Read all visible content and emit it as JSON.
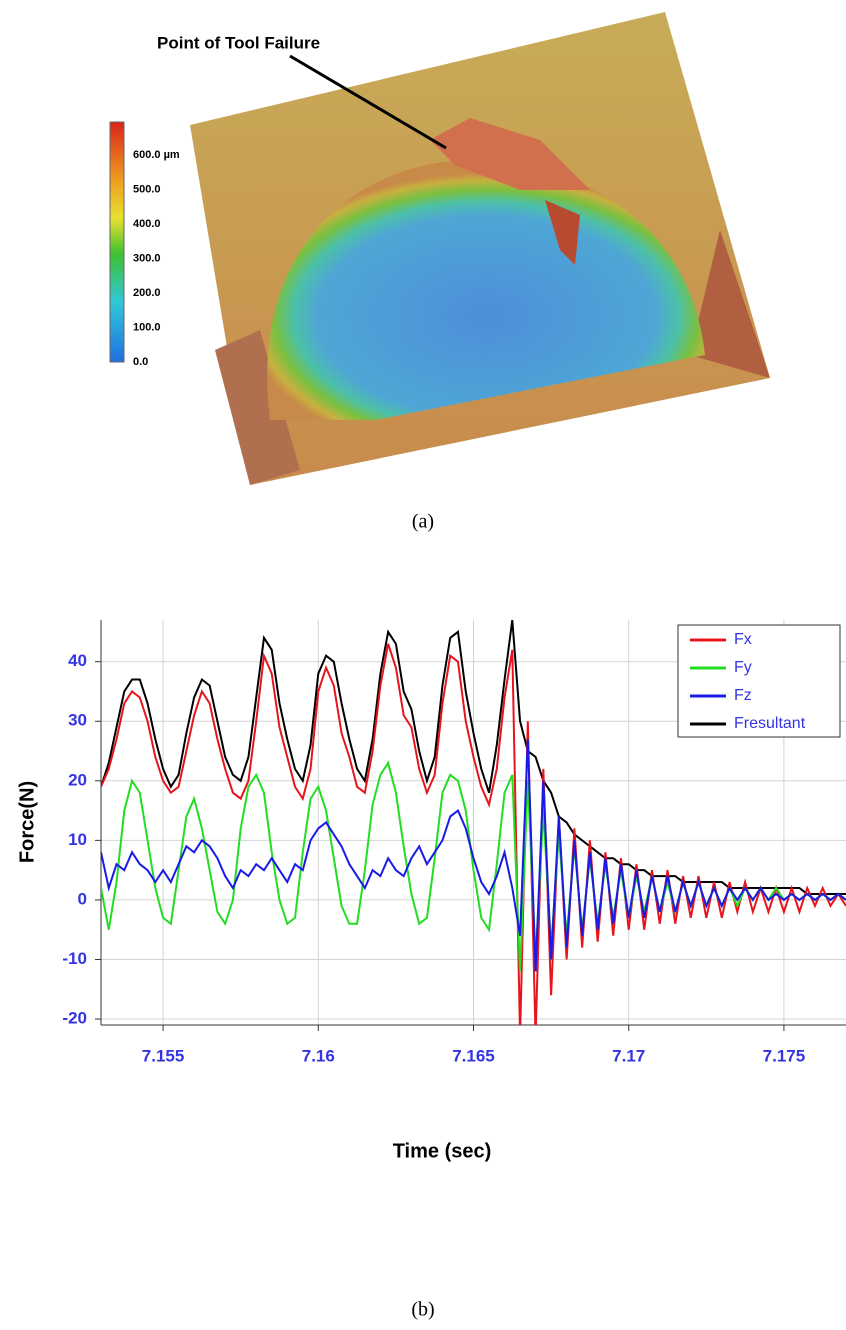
{
  "panel_a": {
    "annotation": "Point of Tool Failure",
    "colorbar_labels": [
      "600.0 µm",
      "500.0",
      "400.0",
      "300.0",
      "200.0",
      "100.0",
      "0.0"
    ],
    "caption": "(a)"
  },
  "chart_data": {
    "type": "line",
    "xlabel": "Time (sec)",
    "ylabel": "Force(N)",
    "caption": "(b)",
    "xlim": [
      7.153,
      7.177
    ],
    "xticks": [
      7.155,
      7.16,
      7.165,
      7.17,
      7.175
    ],
    "ylim": [
      -21,
      47
    ],
    "yticks": [
      -20,
      -10,
      0,
      10,
      20,
      30,
      40
    ],
    "grid": true,
    "legend": "upper right",
    "x": [
      7.153,
      7.15325,
      7.1535,
      7.15375,
      7.154,
      7.15425,
      7.1545,
      7.15475,
      7.155,
      7.15525,
      7.1555,
      7.15575,
      7.156,
      7.15625,
      7.1565,
      7.15675,
      7.157,
      7.15725,
      7.1575,
      7.15775,
      7.158,
      7.15825,
      7.1585,
      7.15875,
      7.159,
      7.15925,
      7.1595,
      7.15975,
      7.16,
      7.16025,
      7.1605,
      7.16075,
      7.161,
      7.16125,
      7.1615,
      7.16175,
      7.162,
      7.16225,
      7.1625,
      7.16275,
      7.163,
      7.16325,
      7.1635,
      7.16375,
      7.164,
      7.16425,
      7.1645,
      7.16475,
      7.165,
      7.16525,
      7.1655,
      7.16575,
      7.166,
      7.16625,
      7.1665,
      7.16675,
      7.167,
      7.16725,
      7.1675,
      7.16775,
      7.168,
      7.16825,
      7.1685,
      7.16875,
      7.169,
      7.16925,
      7.1695,
      7.16975,
      7.17,
      7.17025,
      7.1705,
      7.17075,
      7.171,
      7.17125,
      7.1715,
      7.17175,
      7.172,
      7.17225,
      7.1725,
      7.17275,
      7.173,
      7.17325,
      7.1735,
      7.17375,
      7.174,
      7.17425,
      7.1745,
      7.17475,
      7.175,
      7.17525,
      7.1755,
      7.17575,
      7.176,
      7.17625,
      7.1765,
      7.17675,
      7.177
    ],
    "series": [
      {
        "name": "Fx",
        "color": "#e8141c",
        "values": [
          19,
          22,
          27,
          33,
          35,
          34,
          30,
          24,
          20,
          18,
          19,
          25,
          31,
          35,
          33,
          27,
          22,
          18,
          17,
          20,
          30,
          41,
          38,
          29,
          24,
          19,
          17,
          22,
          35,
          39,
          36,
          28,
          24,
          19,
          18,
          25,
          36,
          43,
          39,
          31,
          29,
          22,
          18,
          21,
          33,
          41,
          40,
          30,
          24,
          19,
          16,
          22,
          34,
          42,
          -23,
          30,
          -23,
          22,
          -16,
          14,
          -10,
          12,
          -8,
          10,
          -7,
          8,
          -6,
          7,
          -5,
          6,
          -5,
          5,
          -4,
          5,
          -4,
          4,
          -3,
          4,
          -3,
          3,
          -3,
          3,
          -2,
          3,
          -2,
          2,
          -2,
          2,
          -2,
          2,
          -2,
          2,
          -1,
          2,
          -1,
          1,
          -1
        ]
      },
      {
        "name": "Fy",
        "color": "#22dd22",
        "values": [
          2,
          -5,
          3,
          15,
          20,
          18,
          10,
          2,
          -3,
          -4,
          5,
          14,
          17,
          12,
          5,
          -2,
          -4,
          0,
          12,
          19,
          21,
          18,
          8,
          0,
          -4,
          -3,
          8,
          17,
          19,
          15,
          7,
          -1,
          -4,
          -4,
          5,
          16,
          21,
          23,
          18,
          9,
          1,
          -4,
          -3,
          7,
          18,
          21,
          20,
          15,
          5,
          -3,
          -5,
          6,
          18,
          21,
          -12,
          20,
          -10,
          15,
          -8,
          11,
          -6,
          9,
          -5,
          7,
          -4,
          6,
          -3,
          5,
          -3,
          4,
          -2,
          4,
          -2,
          3,
          -2,
          3,
          -1,
          3,
          -1,
          2,
          -1,
          2,
          -1,
          2,
          0,
          2,
          0,
          2,
          0,
          1,
          0,
          1,
          0,
          1,
          0,
          1,
          0
        ]
      },
      {
        "name": "Fz",
        "color": "#1a1ae6",
        "values": [
          8,
          2,
          6,
          5,
          8,
          6,
          5,
          3,
          5,
          3,
          6,
          9,
          8,
          10,
          9,
          7,
          4,
          2,
          5,
          4,
          6,
          5,
          7,
          5,
          3,
          6,
          5,
          10,
          12,
          13,
          11,
          9,
          6,
          4,
          2,
          5,
          4,
          7,
          5,
          4,
          7,
          9,
          6,
          8,
          10,
          14,
          15,
          12,
          7,
          3,
          1,
          4,
          8,
          2,
          -6,
          27,
          -12,
          20,
          -10,
          14,
          -8,
          10,
          -6,
          8,
          -5,
          7,
          -4,
          6,
          -3,
          5,
          -3,
          4,
          -2,
          4,
          -2,
          3,
          -1,
          3,
          -1,
          2,
          -1,
          2,
          0,
          2,
          0,
          2,
          0,
          1,
          0,
          1,
          0,
          1,
          0,
          1,
          0,
          1,
          0
        ]
      },
      {
        "name": "Fresultant",
        "color": "#000000",
        "values": [
          19,
          23,
          29,
          35,
          37,
          37,
          33,
          27,
          22,
          19,
          21,
          28,
          34,
          37,
          36,
          30,
          24,
          21,
          20,
          24,
          34,
          44,
          42,
          33,
          27,
          22,
          20,
          26,
          38,
          41,
          40,
          33,
          27,
          22,
          20,
          27,
          38,
          45,
          43,
          35,
          32,
          25,
          20,
          24,
          36,
          44,
          45,
          35,
          28,
          22,
          18,
          26,
          37,
          47,
          30,
          25,
          24,
          20,
          18,
          14,
          13,
          11,
          10,
          9,
          8,
          7,
          7,
          6,
          6,
          5,
          5,
          4,
          4,
          4,
          4,
          3,
          3,
          3,
          3,
          3,
          3,
          2,
          2,
          2,
          2,
          2,
          2,
          2,
          2,
          2,
          2,
          1,
          1,
          1,
          1,
          1,
          1
        ]
      }
    ]
  }
}
